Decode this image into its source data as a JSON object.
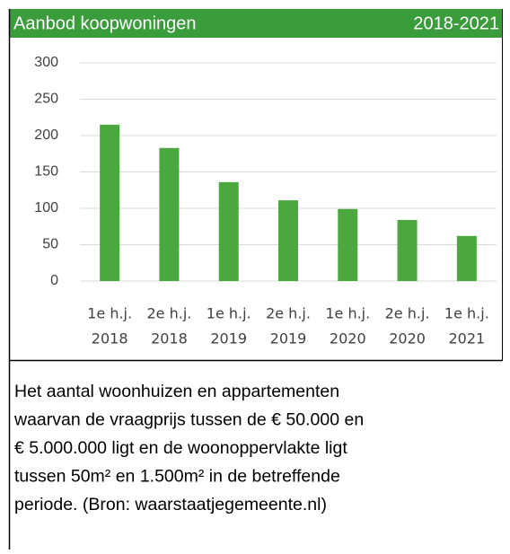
{
  "chart_data": {
    "type": "bar",
    "title": "Aanbod koopwoningen",
    "subtitle": "2018-2021",
    "categories": [
      [
        "1e h.j.",
        "2018"
      ],
      [
        "2e h.j.",
        "2018"
      ],
      [
        "1e h.j.",
        "2019"
      ],
      [
        "2e h.j.",
        "2019"
      ],
      [
        "1e h.j.",
        "2020"
      ],
      [
        "2e h.j.",
        "2020"
      ],
      [
        "1e h.j.",
        "2021"
      ]
    ],
    "values": [
      215,
      183,
      136,
      111,
      99,
      84,
      62
    ],
    "color": "#4aa83f",
    "ylim": [
      0,
      300
    ],
    "yticks": [
      0,
      50,
      100,
      150,
      200,
      250,
      300
    ],
    "grid": true
  },
  "description": [
    "Het aantal woonhuizen en appartementen",
    "waarvan de vraagprijs tussen de € 50.000 en",
    "€ 5.000.000 ligt en de woonoppervlakte ligt",
    "tussen 50m² en 1.500m² in de betreffende",
    "periode. (Bron: waarstaatjegemeente.nl)"
  ]
}
